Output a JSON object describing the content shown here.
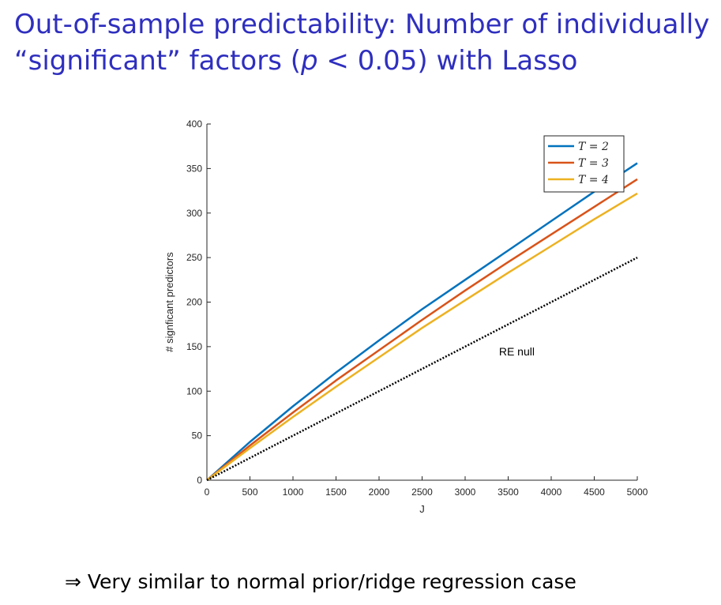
{
  "slide": {
    "title_line1": "Out-of-sample predictability: Number of individually",
    "title_line2_pre": "“significant” factors (",
    "title_line2_p": "p",
    "title_line2_rel": " < 0.05) with Lasso",
    "bottom_note": "⇒ Very similar to normal prior/ridge regression case"
  },
  "chart_data": {
    "type": "line",
    "xlabel": "J",
    "ylabel": "# signficant predictors",
    "xlim": [
      0,
      5000
    ],
    "ylim": [
      0,
      400
    ],
    "xticks": [
      0,
      500,
      1000,
      1500,
      2000,
      2500,
      3000,
      3500,
      4000,
      4500,
      5000
    ],
    "yticks": [
      0,
      50,
      100,
      150,
      200,
      250,
      300,
      350,
      400
    ],
    "grid": false,
    "legend_position": "top-right",
    "series": [
      {
        "name": "T = 2",
        "color": "#0072BD",
        "style": "solid",
        "x": [
          0,
          500,
          1000,
          1500,
          2000,
          2500,
          3000,
          3500,
          4000,
          4500,
          5000
        ],
        "y": [
          0,
          43,
          83,
          121,
          157,
          192,
          225,
          258,
          291,
          324,
          356
        ]
      },
      {
        "name": "T = 3",
        "color": "#D95319",
        "style": "solid",
        "x": [
          0,
          500,
          1000,
          1500,
          2000,
          2500,
          3000,
          3500,
          4000,
          4500,
          5000
        ],
        "y": [
          0,
          39,
          76,
          112,
          146,
          180,
          213,
          245,
          276,
          307,
          338
        ]
      },
      {
        "name": "T = 4",
        "color": "#EDB120",
        "style": "solid",
        "x": [
          0,
          500,
          1000,
          1500,
          2000,
          2500,
          3000,
          3500,
          4000,
          4500,
          5000
        ],
        "y": [
          0,
          36,
          71,
          105,
          138,
          171,
          202,
          233,
          263,
          293,
          322
        ]
      },
      {
        "color": "#000000",
        "style": "dotted",
        "x": [
          0,
          5000
        ],
        "y": [
          0,
          250
        ]
      }
    ],
    "annotations": [
      {
        "text": "RE null",
        "x": 3600,
        "y": 140
      }
    ]
  }
}
